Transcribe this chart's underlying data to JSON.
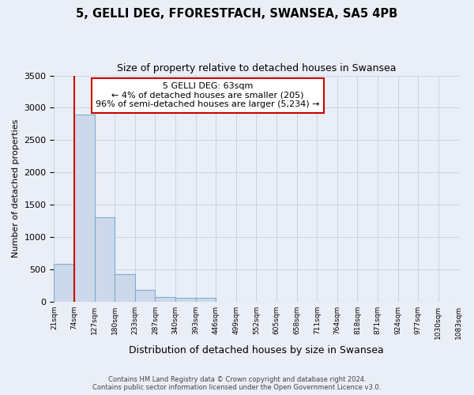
{
  "title": "5, GELLI DEG, FFORESTFACH, SWANSEA, SA5 4PB",
  "subtitle": "Size of property relative to detached houses in Swansea",
  "xlabel": "Distribution of detached houses by size in Swansea",
  "ylabel": "Number of detached properties",
  "bar_values": [
    580,
    2900,
    1300,
    420,
    175,
    70,
    55,
    55,
    0,
    0,
    0,
    0,
    0,
    0,
    0,
    0,
    0,
    0,
    0,
    0
  ],
  "bar_labels": [
    "21sqm",
    "74sqm",
    "127sqm",
    "180sqm",
    "233sqm",
    "287sqm",
    "340sqm",
    "393sqm",
    "446sqm",
    "499sqm",
    "552sqm",
    "605sqm",
    "658sqm",
    "711sqm",
    "764sqm",
    "818sqm",
    "871sqm",
    "924sqm",
    "977sqm",
    "1030sqm",
    "1083sqm"
  ],
  "bar_color": "#cdd9ea",
  "bar_edge_color": "#7aadd4",
  "marker_color": "#cc0000",
  "annotation_title": "5 GELLI DEG: 63sqm",
  "annotation_line1": "← 4% of detached houses are smaller (205)",
  "annotation_line2": "96% of semi-detached houses are larger (5,234) →",
  "annotation_box_color": "#ffffff",
  "annotation_box_edge_color": "#cc0000",
  "ylim": [
    0,
    3500
  ],
  "yticks": [
    0,
    500,
    1000,
    1500,
    2000,
    2500,
    3000,
    3500
  ],
  "footer1": "Contains HM Land Registry data © Crown copyright and database right 2024.",
  "footer2": "Contains public sector information licensed under the Open Government Licence v3.0.",
  "bg_color": "#eaeff7",
  "plot_bg_color": "#eaeff7",
  "grid_color": "#c5cdd9",
  "title_fontsize": 10.5,
  "subtitle_fontsize": 9,
  "bar_width": 1.0
}
